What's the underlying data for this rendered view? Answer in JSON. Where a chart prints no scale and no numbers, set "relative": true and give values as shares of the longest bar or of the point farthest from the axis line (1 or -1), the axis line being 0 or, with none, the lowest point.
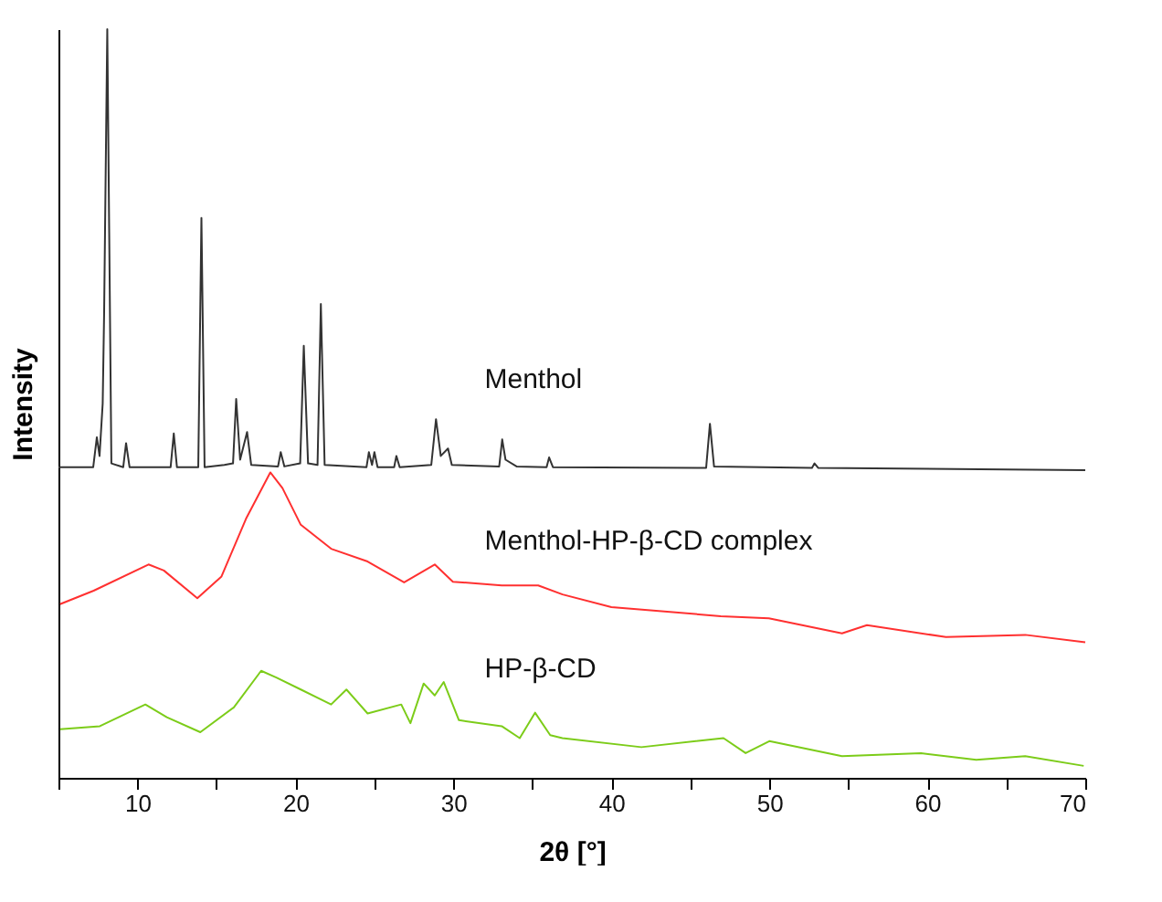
{
  "chart_data": {
    "type": "line",
    "relative": true,
    "xlabel": "2θ [°]",
    "ylabel": "Intensity",
    "legend": false,
    "grid": false,
    "marker": "none",
    "line_style": "solid",
    "xlim": [
      5,
      70
    ],
    "xticks": [
      {
        "value": 5,
        "label": null
      },
      10,
      {
        "value": 15,
        "label": null
      },
      20,
      {
        "value": 25,
        "label": null
      },
      30,
      {
        "value": 35,
        "label": null
      },
      40,
      {
        "value": 45,
        "label": null
      },
      50,
      {
        "value": 55,
        "label": null
      },
      60,
      {
        "value": 65,
        "label": null
      },
      70
    ],
    "series": [
      {
        "name": "Menthol",
        "color": "#333333",
        "x": [
          5.0,
          7.2,
          7.43,
          7.6,
          7.8,
          7.89,
          8.09,
          8.35,
          9.1,
          9.28,
          9.5,
          12.1,
          12.3,
          12.5,
          13.85,
          14.05,
          14.25,
          15.5,
          16.05,
          16.25,
          16.5,
          16.94,
          17.2,
          18.9,
          19.07,
          19.3,
          20.3,
          20.53,
          20.8,
          21.4,
          21.61,
          21.85,
          24.5,
          24.65,
          24.85,
          25.0,
          25.2,
          26.25,
          26.39,
          26.6,
          28.6,
          28.9,
          29.2,
          29.66,
          29.9,
          32.9,
          33.09,
          33.3,
          34.0,
          35.9,
          36.06,
          36.3,
          46.0,
          46.24,
          46.5,
          52.7,
          52.86,
          53.1,
          70.0
        ],
        "values": [
          0.415,
          0.415,
          0.455,
          0.43,
          0.5,
          0.62,
          1.0,
          0.42,
          0.415,
          0.447,
          0.415,
          0.415,
          0.46,
          0.415,
          0.415,
          0.748,
          0.415,
          0.418,
          0.42,
          0.506,
          0.425,
          0.462,
          0.418,
          0.416,
          0.435,
          0.416,
          0.42,
          0.577,
          0.42,
          0.418,
          0.633,
          0.418,
          0.415,
          0.435,
          0.418,
          0.435,
          0.415,
          0.415,
          0.43,
          0.415,
          0.418,
          0.479,
          0.43,
          0.44,
          0.418,
          0.416,
          0.452,
          0.425,
          0.416,
          0.415,
          0.428,
          0.415,
          0.414,
          0.473,
          0.416,
          0.414,
          0.42,
          0.414,
          0.411
        ]
      },
      {
        "name": "Menthol-HP-β-CD complex",
        "color": "#ff3030",
        "x": [
          5.1,
          7.23,
          10.7,
          11.67,
          13.79,
          15.32,
          16.87,
          18.41,
          19.18,
          20.34,
          22.26,
          24.57,
          26.88,
          28.82,
          29.97,
          33.06,
          35.37,
          36.91,
          40.0,
          46.93,
          49.97,
          54.6,
          56.18,
          61.18,
          66.2,
          70.0
        ],
        "values": [
          0.232,
          0.25,
          0.285,
          0.277,
          0.24,
          0.269,
          0.346,
          0.408,
          0.387,
          0.338,
          0.306,
          0.289,
          0.261,
          0.285,
          0.262,
          0.257,
          0.257,
          0.245,
          0.228,
          0.216,
          0.213,
          0.193,
          0.204,
          0.188,
          0.191,
          0.181
        ]
      },
      {
        "name": "HP-β-CD",
        "color": "#7ccc19",
        "x": [
          5.1,
          7.62,
          10.5,
          11.86,
          13.98,
          16.1,
          17.83,
          18.79,
          20.34,
          22.26,
          23.23,
          24.57,
          26.7,
          27.28,
          28.12,
          28.82,
          29.39,
          30.35,
          33.06,
          34.2,
          35.17,
          36.13,
          36.9,
          41.9,
          47.1,
          48.5,
          50.0,
          54.6,
          59.6,
          63.1,
          66.2,
          69.9
        ],
        "values": [
          0.065,
          0.069,
          0.098,
          0.081,
          0.061,
          0.094,
          0.143,
          0.134,
          0.118,
          0.098,
          0.118,
          0.086,
          0.098,
          0.073,
          0.126,
          0.11,
          0.128,
          0.077,
          0.069,
          0.053,
          0.087,
          0.057,
          0.053,
          0.041,
          0.053,
          0.033,
          0.049,
          0.029,
          0.033,
          0.024,
          0.029,
          0.016
        ]
      }
    ]
  }
}
